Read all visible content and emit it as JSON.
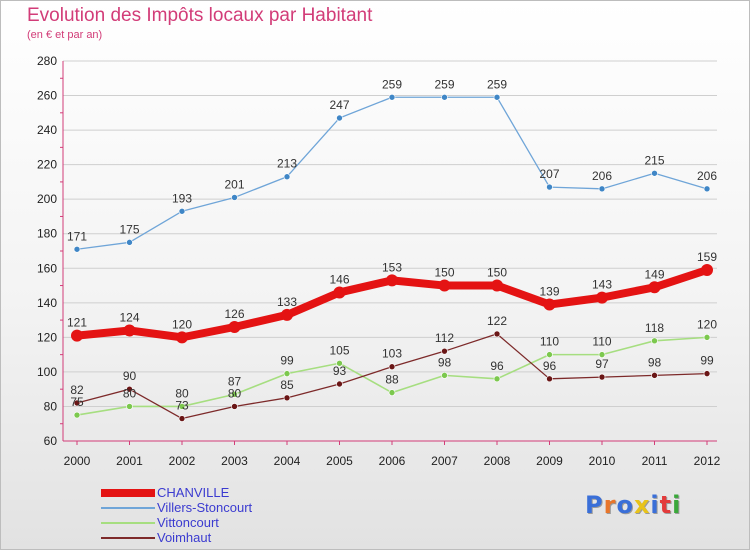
{
  "header": {
    "title": "Evolution des Impôts locaux par Habitant",
    "subtitle": "(en € et par an)"
  },
  "colors": {
    "title": "#d23c78",
    "axis": "#d23c78",
    "grid": "#cfcfcf",
    "legend_text": "#3b3bd0"
  },
  "logo": {
    "text": "Proxiti",
    "letter_colors": [
      "#3a6fd8",
      "#e8762b",
      "#3a6fd8",
      "#e8c31a",
      "#3a6fd8",
      "#e33b3b",
      "#3aa83a"
    ]
  },
  "chart_data": {
    "type": "line",
    "x": [
      2000,
      2001,
      2002,
      2003,
      2004,
      2005,
      2006,
      2007,
      2008,
      2009,
      2010,
      2011,
      2012
    ],
    "ylim": [
      60,
      280
    ],
    "yticks": [
      60,
      80,
      100,
      120,
      140,
      160,
      180,
      200,
      220,
      240,
      260,
      280
    ],
    "grid": "horizontal",
    "legend_position": "bottom-left",
    "series": [
      {
        "name": "CHANVILLE",
        "color": "#e41313",
        "marker_color": "#e41313",
        "values": [
          121,
          124,
          120,
          126,
          133,
          146,
          153,
          150,
          150,
          139,
          143,
          149,
          159
        ]
      },
      {
        "name": "Villers-Stoncourt",
        "color": "#6fa5d8",
        "marker_color": "#3f86c6",
        "values": [
          171,
          175,
          193,
          201,
          213,
          247,
          259,
          259,
          259,
          207,
          206,
          215,
          206
        ]
      },
      {
        "name": "Vittoncourt",
        "color": "#a6de80",
        "marker_color": "#7cc84e",
        "values": [
          75,
          80,
          80,
          87,
          99,
          105,
          88,
          98,
          96,
          110,
          110,
          118,
          120
        ]
      },
      {
        "name": "Voimhaut",
        "color": "#7d2a2a",
        "marker_color": "#6a1616",
        "values": [
          82,
          90,
          73,
          80,
          85,
          93,
          103,
          112,
          122,
          96,
          97,
          98,
          99
        ]
      }
    ]
  }
}
